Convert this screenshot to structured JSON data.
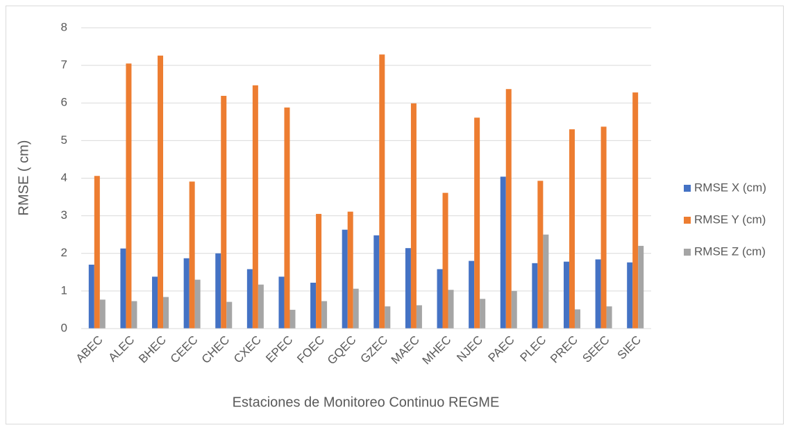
{
  "chart_data": {
    "type": "bar",
    "x_label": "Estaciones de Monitoreo Continuo REGME",
    "y_label": "RMSE ( cm)",
    "categories": [
      "ABEC",
      "ALEC",
      "BHEC",
      "CEEC",
      "CHEC",
      "CXEC",
      "EPEC",
      "FOEC",
      "GQEC",
      "GZEC",
      "MAEC",
      "MHEC",
      "NJEC",
      "PAEC",
      "PLEC",
      "PREC",
      "SEEC",
      "SIEC"
    ],
    "series": [
      {
        "name": "RMSE X (cm)",
        "color": "#4472c4",
        "values": [
          1.7,
          2.13,
          1.38,
          1.87,
          2.0,
          1.58,
          1.38,
          1.22,
          2.63,
          2.48,
          2.14,
          1.58,
          1.8,
          4.04,
          1.74,
          1.78,
          1.84,
          1.76
        ]
      },
      {
        "name": "RMSE Y (cm)",
        "color": "#ed7d31",
        "values": [
          4.06,
          7.05,
          7.26,
          3.91,
          6.19,
          6.47,
          5.88,
          3.05,
          3.11,
          7.29,
          5.99,
          3.61,
          5.61,
          6.37,
          3.93,
          5.3,
          5.37,
          6.28
        ]
      },
      {
        "name": "RMSE Z (cm)",
        "color": "#a5a5a5",
        "values": [
          0.77,
          0.73,
          0.84,
          1.3,
          0.71,
          1.17,
          0.5,
          0.73,
          1.06,
          0.59,
          0.62,
          1.03,
          0.79,
          1.0,
          2.5,
          0.51,
          0.59,
          2.2
        ]
      }
    ],
    "ylim": [
      0,
      8
    ],
    "yticks": [
      0,
      1,
      2,
      3,
      4,
      5,
      6,
      7,
      8
    ],
    "grid": true,
    "legend": "right"
  }
}
